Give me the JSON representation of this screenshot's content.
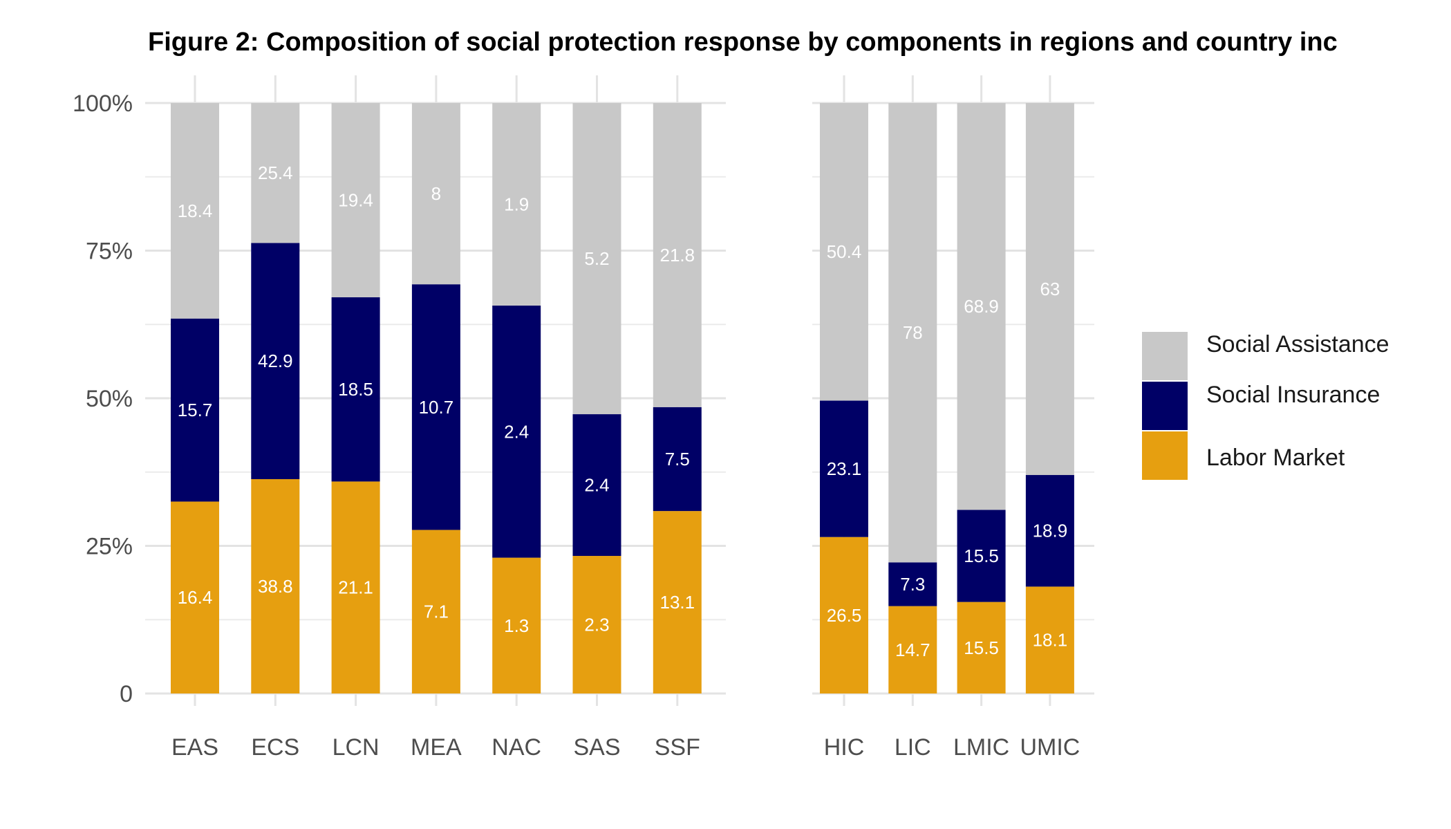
{
  "chart_data": {
    "type": "bar",
    "stacked": true,
    "normalized": true,
    "title": "Figure 2: Composition of social protection response by components in regions and country inc",
    "ylabel": "",
    "xlabel": "",
    "ylim": [
      0,
      100
    ],
    "y_ticks": [
      "0",
      "25%",
      "50%",
      "75%",
      "100%"
    ],
    "y_tick_values": [
      0,
      25,
      50,
      75,
      100
    ],
    "legend_position": "right",
    "colors": {
      "Labor Market": "#e69f10",
      "Social Insurance": "#000066",
      "Social Assistance": "#c8c8c8"
    },
    "legend": [
      "Social Assistance",
      "Social Insurance",
      "Labor Market"
    ],
    "stack_order": [
      "Labor Market",
      "Social Insurance",
      "Social Assistance"
    ],
    "panels": [
      {
        "name": "regions",
        "categories": [
          "EAS",
          "ECS",
          "LCN",
          "MEA",
          "NAC",
          "SAS",
          "SSF"
        ],
        "series": [
          {
            "name": "Labor Market",
            "values": [
              16.4,
              38.8,
              21.1,
              7.1,
              1.3,
              2.3,
              13.1
            ],
            "shares": [
              32.5,
              36.3,
              35.9,
              27.7,
              23.0,
              23.3,
              30.9
            ]
          },
          {
            "name": "Social Insurance",
            "values": [
              15.7,
              42.9,
              18.5,
              10.7,
              2.4,
              2.4,
              7.5
            ],
            "shares": [
              31.0,
              40.0,
              31.2,
              41.6,
              42.7,
              24.0,
              17.6
            ]
          },
          {
            "name": "Social Assistance",
            "values": [
              18.4,
              25.4,
              19.4,
              8,
              1.9,
              5.2,
              21.8
            ],
            "shares": [
              36.5,
              23.7,
              32.9,
              30.7,
              34.3,
              52.7,
              51.5
            ]
          }
        ]
      },
      {
        "name": "income groups",
        "categories": [
          "HIC",
          "LIC",
          "LMIC",
          "UMIC"
        ],
        "series": [
          {
            "name": "Labor Market",
            "values": [
              26.5,
              14.7,
              15.5,
              18.1
            ],
            "shares": [
              26.5,
              14.8,
              15.5,
              18.1
            ]
          },
          {
            "name": "Social Insurance",
            "values": [
              23.1,
              7.3,
              15.5,
              18.9
            ],
            "shares": [
              23.1,
              7.4,
              15.6,
              18.9
            ]
          },
          {
            "name": "Social Assistance",
            "values": [
              50.4,
              78,
              68.9,
              63
            ],
            "shares": [
              50.4,
              77.8,
              68.9,
              63.0
            ]
          }
        ]
      }
    ]
  }
}
